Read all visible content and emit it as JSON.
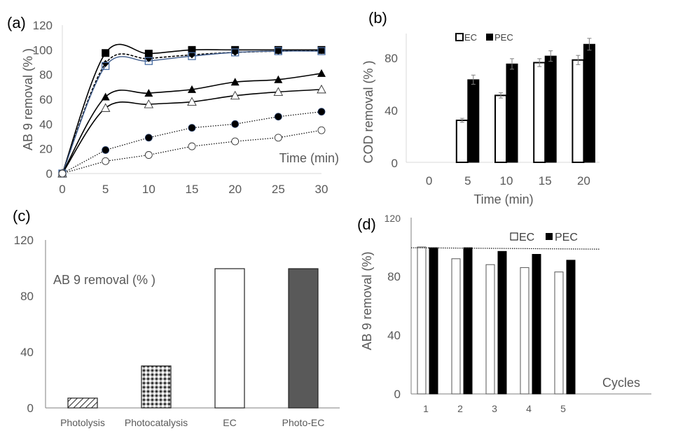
{
  "chart_data": [
    {
      "id": "a",
      "panel_label": "(a)",
      "type": "line",
      "title": "",
      "xlabel": "Time (min)",
      "ylabel": "AB 9 removal (% )",
      "xlim": [
        0,
        30
      ],
      "ylim": [
        0,
        120
      ],
      "xticks": [
        0,
        5,
        10,
        15,
        20,
        25,
        30
      ],
      "yticks": [
        0,
        20,
        40,
        60,
        80,
        100,
        120
      ],
      "grid": false,
      "x": [
        0,
        5,
        10,
        15,
        20,
        25,
        30
      ],
      "series": [
        {
          "name": "filled-square",
          "marker": "square-filled",
          "line": "solid-smooth",
          "values": [
            0,
            97.5,
            97,
            100,
            100,
            100,
            100
          ]
        },
        {
          "name": "diamond",
          "marker": "diamond-filled",
          "line": "dashed-smooth",
          "values": [
            0,
            89,
            93,
            96,
            98,
            99,
            99.5
          ]
        },
        {
          "name": "open-square",
          "marker": "square-open-blue",
          "line": "solid-smooth-blue",
          "values": [
            0,
            87,
            91,
            95,
            98,
            99,
            99
          ]
        },
        {
          "name": "filled-triangle",
          "marker": "triangle-filled",
          "line": "solid-smooth",
          "values": [
            0,
            62,
            65,
            68,
            74,
            76,
            81
          ]
        },
        {
          "name": "open-triangle",
          "marker": "triangle-open",
          "line": "solid-smooth",
          "values": [
            0,
            53,
            56,
            58,
            63,
            66,
            68
          ]
        },
        {
          "name": "filled-circle",
          "marker": "circle-filled",
          "line": "dotted",
          "values": [
            0,
            19,
            29,
            37,
            40,
            46,
            50
          ]
        },
        {
          "name": "open-circle",
          "marker": "circle-open",
          "line": "dotted",
          "values": [
            0,
            10,
            15,
            22,
            26,
            29,
            35
          ]
        }
      ]
    },
    {
      "id": "b",
      "panel_label": "(b)",
      "type": "bar",
      "title": "",
      "xlabel": "Time (min)",
      "ylabel": "COD removal (% )",
      "categories": [
        "0",
        "5",
        "10",
        "15",
        "20"
      ],
      "ylim": [
        0,
        100
      ],
      "yticks": [
        0,
        40,
        80
      ],
      "grid": false,
      "legend": {
        "position": "top-center",
        "entries": [
          "EC",
          "PEC"
        ]
      },
      "series": [
        {
          "name": "EC",
          "fill": "#ffffff",
          "values": [
            0,
            32,
            51,
            76,
            78
          ],
          "errors": [
            0,
            1.5,
            2,
            3,
            3.5
          ]
        },
        {
          "name": "PEC",
          "fill": "#000000",
          "values": [
            0,
            63,
            75,
            81,
            90
          ],
          "errors": [
            0,
            3.5,
            4,
            4,
            4.5
          ]
        }
      ]
    },
    {
      "id": "c",
      "panel_label": "(c)",
      "type": "bar",
      "title": "",
      "annotation": "AB 9 removal (% )",
      "xlabel": "",
      "ylabel": "",
      "categories": [
        "Photolysis",
        "Photocatalysis",
        "EC",
        "Photo-EC"
      ],
      "values": [
        7,
        30,
        99.5,
        99.5
      ],
      "patterns": [
        "diagonal-hatch",
        "checker",
        "white",
        "dark-gray"
      ],
      "ylim": [
        0,
        120
      ],
      "yticks": [
        0,
        40,
        80,
        120
      ],
      "grid": false
    },
    {
      "id": "d",
      "panel_label": "(d)",
      "type": "bar",
      "title": "",
      "xlabel": "Cycles",
      "ylabel": "AB 9 removal (%)",
      "categories": [
        "1",
        "2",
        "3",
        "4",
        "5"
      ],
      "ylim": [
        0,
        120
      ],
      "yticks": [
        0,
        40,
        80,
        120
      ],
      "grid": false,
      "reference_line": 99,
      "legend": {
        "position": "top-center",
        "entries": [
          "EC",
          "PEC"
        ]
      },
      "series": [
        {
          "name": "EC",
          "fill": "#ffffff",
          "values": [
            100,
            92,
            88,
            86,
            83
          ]
        },
        {
          "name": "PEC",
          "fill": "#000000",
          "values": [
            99.5,
            99.5,
            97,
            95,
            91
          ]
        }
      ]
    }
  ]
}
